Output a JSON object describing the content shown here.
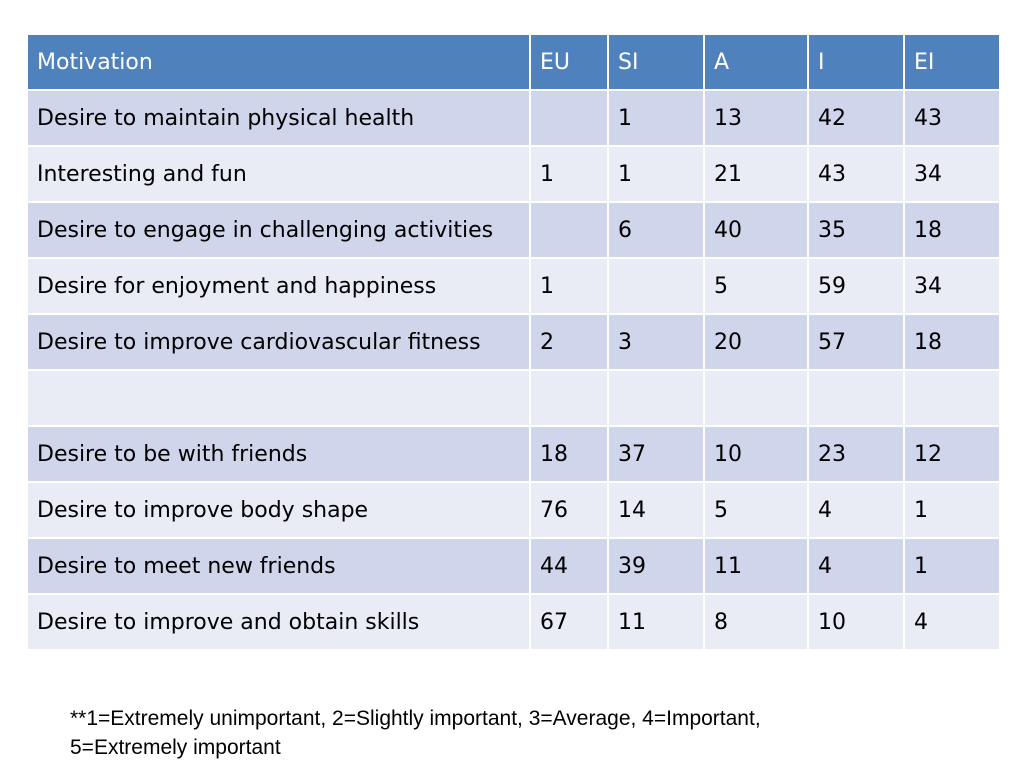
{
  "table": {
    "headers": [
      "Motivation",
      "EU",
      "SI",
      "A",
      "I",
      "EI"
    ],
    "rows": [
      [
        "Desire to maintain physical health",
        "",
        "1",
        "13",
        "42",
        "43"
      ],
      [
        "Interesting and fun",
        "1",
        "1",
        "21",
        "43",
        "34"
      ],
      [
        "Desire to engage in challenging activities",
        "",
        "6",
        "40",
        "35",
        "18"
      ],
      [
        "Desire for enjoyment and happiness",
        "1",
        "",
        "5",
        "59",
        "34"
      ],
      [
        "Desire to improve cardiovascular fitness",
        "2",
        "3",
        "20",
        "57",
        "18"
      ],
      [
        "",
        "",
        "",
        "",
        "",
        ""
      ],
      [
        "Desire to be with friends",
        "18",
        "37",
        "10",
        "23",
        "12"
      ],
      [
        "Desire to improve body shape",
        "76",
        "14",
        "5",
        "4",
        "1"
      ],
      [
        "Desire to meet new friends",
        "44",
        "39",
        "11",
        "4",
        "1"
      ],
      [
        "Desire to improve and obtain skills",
        "67",
        "11",
        "8",
        "10",
        "4"
      ]
    ]
  },
  "footnote": {
    "line1": "**1=Extremely unimportant, 2=Slightly important, 3=Average, 4=Important,",
    "line2": "5=Extremely important"
  },
  "colors": {
    "header_bg": "#4f81bd",
    "row_odd_bg": "#cfd5ea",
    "row_even_bg": "#e9ebf5"
  }
}
